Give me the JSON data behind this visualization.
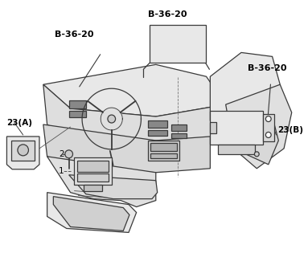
{
  "background_color": "#ffffff",
  "line_color": "#3a3a3a",
  "labels": {
    "b36_20_top_left": "B-36-20",
    "b36_20_top_center": "B-36-20",
    "b36_20_right": "B-36-20",
    "label_23a": "23(A)",
    "label_23b": "23(B)",
    "label_1": "1",
    "label_2": "2"
  },
  "figsize": [
    3.83,
    3.2
  ],
  "dpi": 100
}
